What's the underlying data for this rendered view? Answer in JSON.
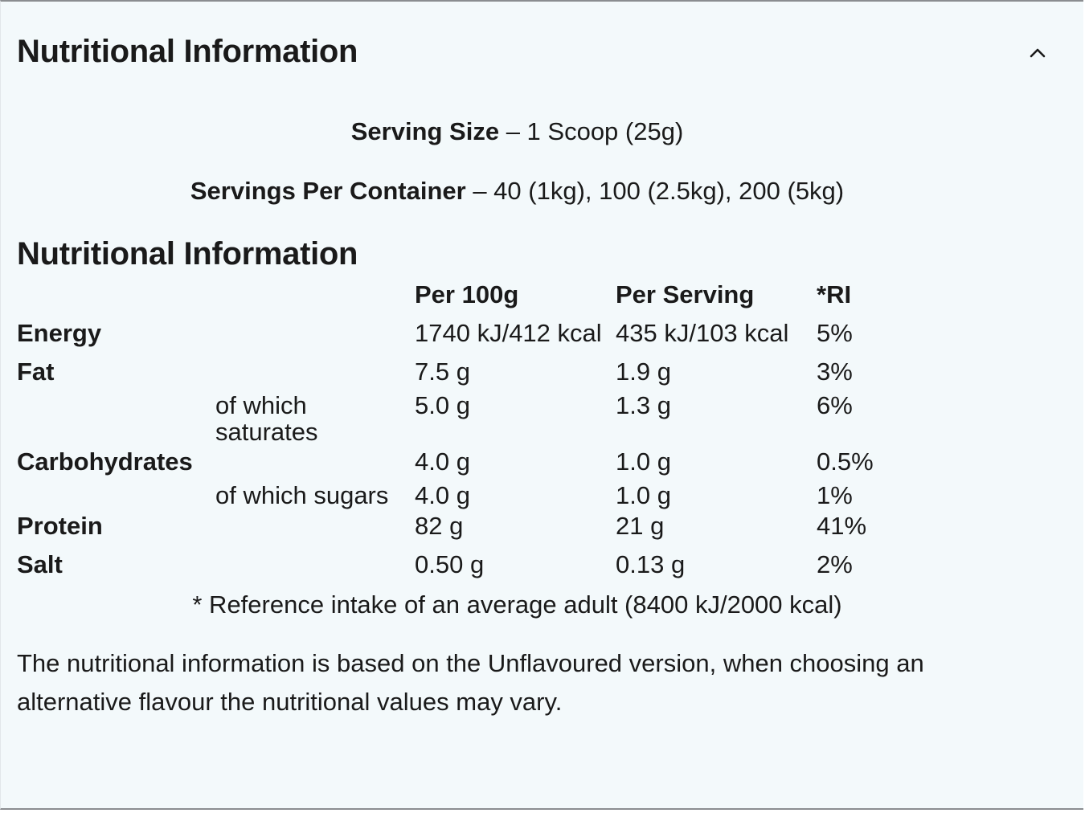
{
  "accordion": {
    "title": "Nutritional Information",
    "expanded": true
  },
  "serving": {
    "size_label": "Serving Size",
    "size_value": " – 1 Scoop (25g)",
    "per_container_label": "Servings Per Container",
    "per_container_value": " – 40 (1kg), 100 (2.5kg), 200 (5kg)"
  },
  "table": {
    "title": "Nutritional Information",
    "headers": {
      "per_100g": "Per 100g",
      "per_serving": "Per Serving",
      "ri": "*RI"
    },
    "rows": [
      {
        "label": "Energy",
        "sub": "",
        "per_100g": "1740 kJ/412 kcal",
        "per_serving": "435 kJ/103 kcal",
        "ri": "5%"
      },
      {
        "label": "Fat",
        "sub": "",
        "per_100g": "7.5 g",
        "per_serving": "1.9 g",
        "ri": "3%"
      },
      {
        "label": "",
        "sub_line1": "of which",
        "sub_line2": "saturates",
        "per_100g": "5.0 g",
        "per_serving": "1.3 g",
        "ri": "6%"
      },
      {
        "label": "Carbohydrates",
        "sub": "",
        "per_100g": "4.0 g",
        "per_serving": "1.0 g",
        "ri": "0.5%"
      },
      {
        "label": "",
        "sub": "of which sugars",
        "per_100g": "4.0 g",
        "per_serving": "1.0 g",
        "ri": "1%"
      },
      {
        "label": "Protein",
        "sub": "",
        "per_100g": "82 g",
        "per_serving": "21 g",
        "ri": "41%"
      },
      {
        "label": "Salt",
        "sub": "",
        "per_100g": "0.50 g",
        "per_serving": "0.13 g",
        "ri": "2%"
      }
    ],
    "footnote": "* Reference intake of an average adult (8400 kJ/2000 kcal)"
  },
  "disclaimer": "The nutritional information is based on the Unflavoured version, when choosing an alternative flavour the nutritional values may vary.",
  "icons": {
    "collapse": "chevron-up-icon"
  }
}
